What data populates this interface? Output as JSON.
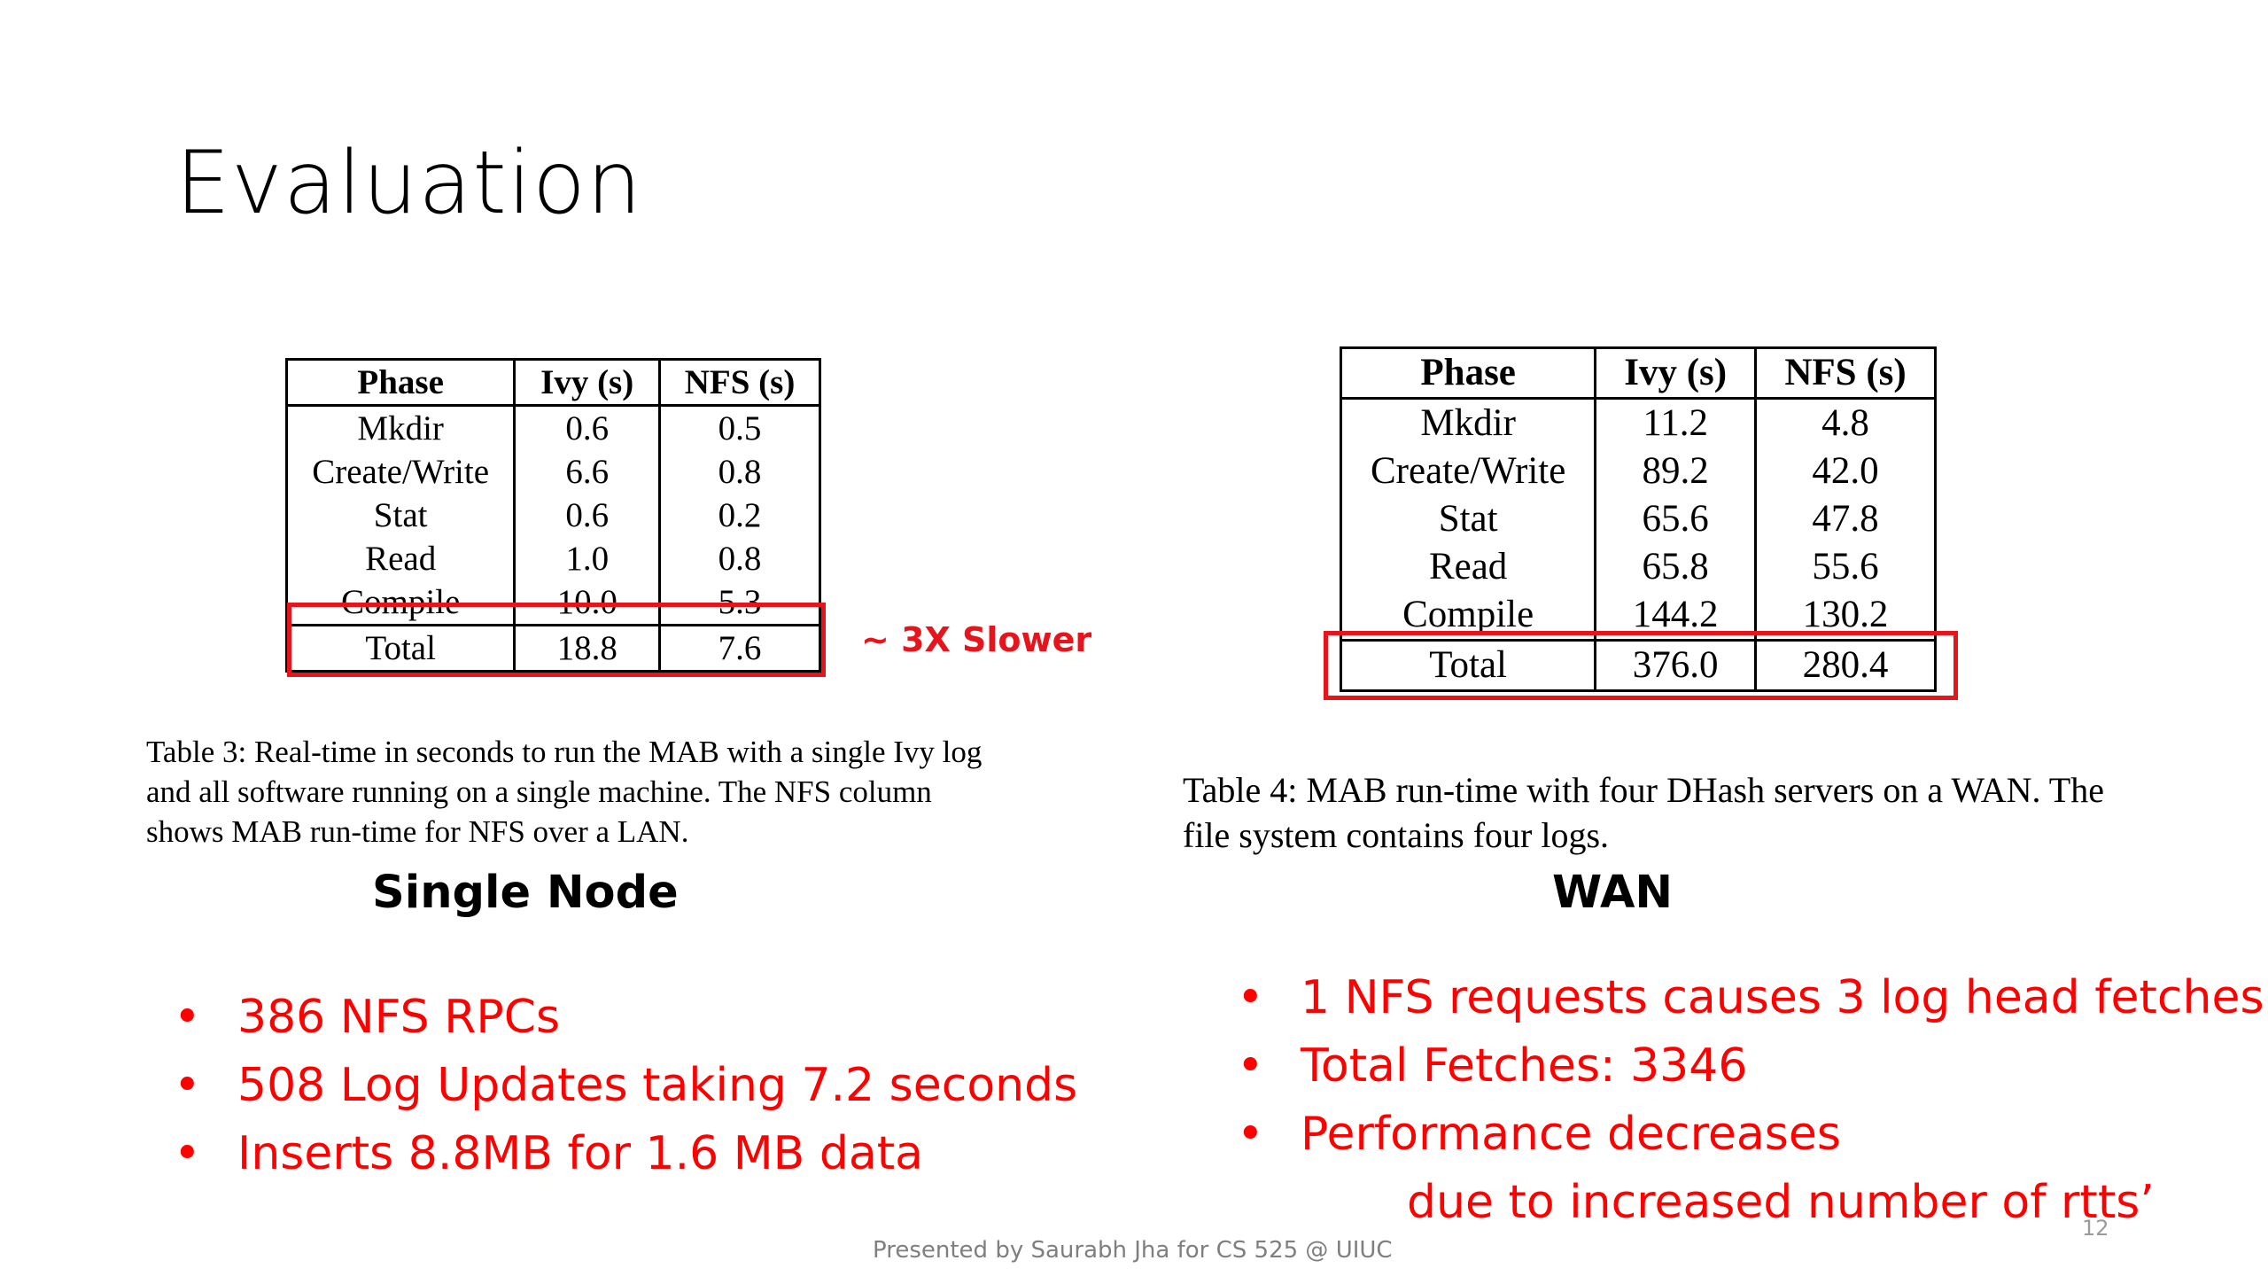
{
  "slide": {
    "title": "Evaluation",
    "footer": "Presented by Saurabh Jha for CS 525 @ UIUC",
    "page_number": "12"
  },
  "table3": {
    "headers": [
      "Phase",
      "Ivy (s)",
      "NFS (s)"
    ],
    "rows": [
      [
        "Mkdir",
        "0.6",
        "0.5"
      ],
      [
        "Create/Write",
        "6.6",
        "0.8"
      ],
      [
        "Stat",
        "0.6",
        "0.2"
      ],
      [
        "Read",
        "1.0",
        "0.8"
      ],
      [
        "Compile",
        "10.0",
        "5.3"
      ]
    ],
    "total": [
      "Total",
      "18.8",
      "7.6"
    ],
    "caption": "Table 3: Real-time in seconds to run the MAB with a single Ivy log and all software running on a single machine. The NFS column shows MAB run-time for NFS over a LAN."
  },
  "table4": {
    "headers": [
      "Phase",
      "Ivy (s)",
      "NFS (s)"
    ],
    "rows": [
      [
        "Mkdir",
        "11.2",
        "4.8"
      ],
      [
        "Create/Write",
        "89.2",
        "42.0"
      ],
      [
        "Stat",
        "65.6",
        "47.8"
      ],
      [
        "Read",
        "65.8",
        "55.6"
      ],
      [
        "Compile",
        "144.2",
        "130.2"
      ]
    ],
    "total": [
      "Total",
      "376.0",
      "280.4"
    ],
    "caption": "Table 4: MAB run-time with four DHash servers on a WAN. The file system contains four logs."
  },
  "annotation": "~ 3X Slower",
  "single_node": {
    "label": "Single Node",
    "bullets": [
      "386 NFS RPCs",
      "508 Log Updates taking 7.2 seconds",
      "Inserts 8.8MB for 1.6 MB data"
    ]
  },
  "wan": {
    "label": "WAN",
    "bullets": [
      "1 NFS requests causes 3 log head fetches",
      "Total Fetches: 3346",
      "Performance decreases"
    ],
    "continuation": "due to increased number of rtts’"
  },
  "colors": {
    "highlight": "#e8141b",
    "bullet_text": "#ff0000",
    "footer": "#7f7f7f"
  }
}
